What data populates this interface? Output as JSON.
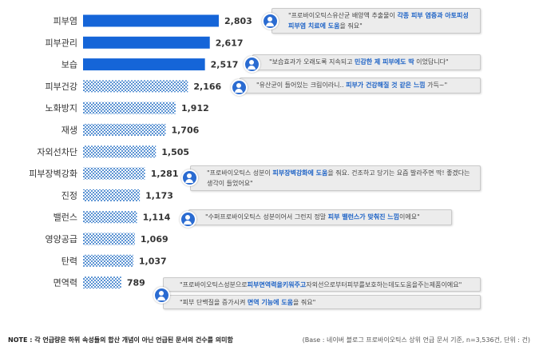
{
  "chart_data": {
    "type": "bar",
    "orientation": "horizontal",
    "categories": [
      "피부염",
      "피부관리",
      "보습",
      "피부건강",
      "노화방지",
      "재생",
      "자외선차단",
      "피부장벽강화",
      "진정",
      "밸런스",
      "영양공급",
      "탄력",
      "면역력"
    ],
    "values": [
      2803,
      2617,
      2517,
      2166,
      1912,
      1706,
      1505,
      1281,
      1173,
      1114,
      1069,
      1037,
      789
    ],
    "value_labels": [
      "2,803",
      "2,617",
      "2,517",
      "2,166",
      "1,912",
      "1,706",
      "1,505",
      "1,281",
      "1,173",
      "1,114",
      "1,069",
      "1,037",
      "789"
    ],
    "solid_top": 3,
    "colors": {
      "solid": "#1565d8",
      "pattern": "#6a9fd6",
      "pattern_bg": "#ffffff"
    },
    "xlim": [
      0,
      2803
    ],
    "grid": false
  },
  "quotes": [
    {
      "row": 0,
      "text": "\"프로바이오틱스유산균 배양액 추출물이 ",
      "hl": "각종 피부 염증과 아토피성 피부염 치료에 도움",
      "tail": "을 줘요\""
    },
    {
      "row": 2,
      "text": "\"보습효과가 오래도록 지속되고 ",
      "hl": "민감한 제 피부에도 딱",
      "tail": " 이었답니다\""
    },
    {
      "row": 3,
      "text": "\"유산균이 들어있는 크림이라니.. ",
      "hl": "피부가 건강해질 것 같은 느낌",
      "tail": " 가득~\""
    },
    {
      "row": 7,
      "text": "\"프로바이오틱스 성분이 ",
      "hl": "피부장벽강화에 도움",
      "tail": "을 줘요. 건조하고 당기는 요즘 발라주면 딱! 좋겠다는 생각이 들었어요\""
    },
    {
      "row": 9,
      "text": "\"수퍼프로바이오틱스 성분이어서 그런지 정말 ",
      "hl": "피부 밸런스가 맞춰진 느낌",
      "tail": "이에요\""
    },
    {
      "row": 12,
      "text": "\"프로바이오틱스성분으로",
      "hl": "피부면역력을키워주고",
      "tail": "자외선으로부터피부를보호하는데도도움을주는제품이에요\""
    },
    {
      "row": 12,
      "text": "\"피부 단백질을 증가시켜 ",
      "hl": "면역 기능에 도움",
      "tail": "을 줘요\""
    }
  ],
  "footer": {
    "note_label": "NOTE : ",
    "note_text": "각 언급량은 하위 속성들의 합산 개념이 아닌 언급된 문서의 건수를 의미함",
    "base_text": "(Base : 네이버 블로그 프로바이오틱스 상위 언급 문서 기준, n=3,536건, 단위 : 건)"
  }
}
